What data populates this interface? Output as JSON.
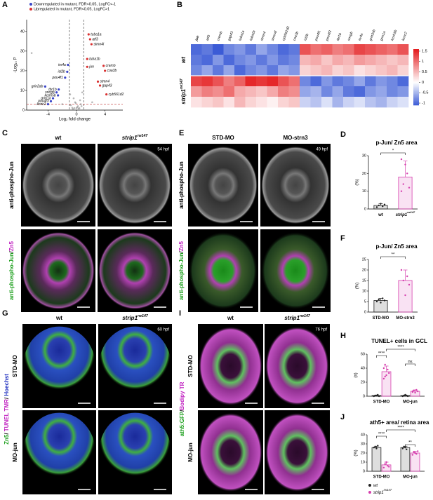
{
  "panels": {
    "A": {
      "letter": "A",
      "type": "volcano",
      "legend": [
        {
          "label": "Downregulated in mutant, FDR<0.05, LogFC<-1",
          "color": "#3a45c8",
          "genes": [
            {
              "name": "irx4a",
              "x": -1.2,
              "y": 23
            },
            {
              "name": "isl2b",
              "x": -1.3,
              "y": 19.5
            },
            {
              "name": "pou4f1",
              "x": -1.6,
              "y": 16.5
            },
            {
              "name": "grin2ab",
              "x": -4.4,
              "y": 12
            },
            {
              "name": "tbr1b",
              "x": -2.5,
              "y": 10.5
            },
            {
              "name": "sncgb",
              "x": -2.8,
              "y": 9
            },
            {
              "name": "kcnh5b",
              "x": -2.6,
              "y": 7.5
            },
            {
              "name": "grm1a",
              "x": -3.3,
              "y": 6
            },
            {
              "name": "pou4f3",
              "x": -3.6,
              "y": 4.5
            },
            {
              "name": "kcnc2",
              "x": -4.0,
              "y": 3
            }
          ]
        },
        {
          "label": "Upregulated in mutant, FDR<0.05, LogFC>1",
          "color": "#d93030",
          "genes": [
            {
              "name": "tuba1a",
              "x": 1.7,
              "y": 38.5
            },
            {
              "name": "atf3",
              "x": 1.9,
              "y": 36
            },
            {
              "name": "stmn4l",
              "x": 2.1,
              "y": 33.5
            },
            {
              "name": "tuba1b",
              "x": 1.5,
              "y": 26
            },
            {
              "name": "jun",
              "x": 1.5,
              "y": 22
            },
            {
              "name": "cremb",
              "x": 3.8,
              "y": 22.5
            },
            {
              "name": "coa3b",
              "x": 4.0,
              "y": 20
            },
            {
              "name": "stmn4",
              "x": 3.0,
              "y": 14.5
            },
            {
              "name": "gap43",
              "x": 3.3,
              "y": 12.5
            },
            {
              "name": "cyb561d2",
              "x": 4.2,
              "y": 8
            }
          ]
        }
      ],
      "other_points": {
        "x": [
          -0.3,
          0.2,
          -0.5,
          0.6,
          0.1,
          -0.8,
          0.4,
          -0.2,
          0.7,
          -0.6,
          0.3,
          -0.1,
          0.5,
          -0.4,
          0.0,
          -6.3,
          -2.0,
          2.2,
          -0.9,
          0.8
        ],
        "y": [
          1,
          2,
          0.5,
          3,
          1.5,
          2.5,
          1,
          4,
          2,
          1.2,
          0.8,
          3.5,
          5,
          6,
          1,
          29,
          3,
          4,
          8,
          9
        ]
      },
      "x_label": "Log₂ fold change",
      "y_label": "-Log₁₀ P",
      "xlim": [
        -7,
        6.5
      ],
      "ylim": [
        0,
        46
      ],
      "xticks": [
        -4,
        0,
        4
      ],
      "yticks": [
        0,
        10,
        20,
        30,
        40
      ],
      "logfc_cutoffs": [
        -1,
        1
      ],
      "p_cutoff": 3
    },
    "B": {
      "letter": "B",
      "type": "heatmap",
      "columns": [
        "jun",
        "atf3",
        "cremb",
        "gap43",
        "tuba1a",
        "tuba1b",
        "stmn4",
        "stmn4l",
        "cyb561d2",
        "coa3b",
        "isl2b",
        "pou4f1",
        "pou4f3",
        "tbr1b",
        "sncgb",
        "irx4a",
        "grin2ab",
        "grm1a",
        "kcnh5b",
        "kcnc2"
      ],
      "row_groups": [
        {
          "label": "wt",
          "values": [
            [
              -1.0,
              -0.9,
              -1.1,
              -0.8,
              -0.7,
              -0.9,
              -0.6,
              -0.8,
              -1.0,
              -0.9,
              1.2,
              1.0,
              1.1,
              0.9,
              1.0,
              1.3,
              1.2,
              1.1,
              1.0,
              1.2
            ],
            [
              -0.9,
              -1.0,
              -0.7,
              -1.0,
              -0.8,
              -0.7,
              -0.9,
              -0.7,
              -0.9,
              -0.8,
              0.5,
              0.6,
              0.4,
              0.6,
              0.5,
              0.7,
              0.6,
              0.5,
              0.4,
              0.5
            ],
            [
              -0.8,
              -0.6,
              -0.9,
              -0.6,
              -1.0,
              -0.8,
              -0.7,
              -0.9,
              -0.6,
              -0.7,
              0.3,
              0.4,
              0.5,
              0.3,
              0.4,
              0.2,
              0.3,
              0.4,
              0.5,
              0.3
            ]
          ]
        },
        {
          "label": "strip1",
          "sup": "rw147",
          "values": [
            [
              1.3,
              1.4,
              1.2,
              0.9,
              1.1,
              1.5,
              1.4,
              1.5,
              1.2,
              1.0,
              -0.8,
              -1.0,
              -0.7,
              -0.9,
              -0.8,
              -0.6,
              -0.9,
              -0.7,
              -0.8,
              -1.0
            ],
            [
              0.7,
              0.9,
              0.8,
              1.0,
              0.6,
              0.5,
              0.4,
              0.6,
              0.9,
              0.8,
              -0.6,
              -0.5,
              -0.8,
              -0.6,
              -0.9,
              -1.0,
              -0.7,
              -0.6,
              -0.8,
              -0.7
            ],
            [
              0.2,
              0.3,
              0.4,
              0.2,
              0.5,
              0.3,
              0.2,
              0.1,
              0.3,
              0.4,
              -0.3,
              -0.4,
              -0.2,
              -0.5,
              -0.3,
              -0.2,
              -0.4,
              -0.5,
              -0.3,
              -0.2
            ]
          ]
        }
      ],
      "clim": [
        -1.1,
        1.6
      ],
      "cticks": [
        1.5,
        1,
        0.5,
        0,
        -0.5,
        -1
      ],
      "colors": {
        "low": "#3b5bd6",
        "mid": "#ffffff",
        "high": "#e31a1c"
      }
    },
    "C": {
      "letter": "C",
      "columns": [
        {
          "label": "wt"
        },
        {
          "label": "strip1",
          "sup": "rw147"
        }
      ],
      "stage": "54 hpf",
      "rows": [
        {
          "parts": [
            {
              "text": "anti-phospho-Jun",
              "color": "#000000"
            }
          ]
        },
        {
          "parts": [
            {
              "text": "anti-phospho-Jun",
              "color": "#1fa01f"
            },
            {
              "text": "/",
              "color": "#000000"
            },
            {
              "text": "Zn5",
              "color": "#c020c0"
            }
          ]
        }
      ]
    },
    "E": {
      "letter": "E",
      "columns": [
        {
          "label": "STD-MO"
        },
        {
          "label": "MO-strn3"
        }
      ],
      "stage": "49 hpf",
      "rows": [
        {
          "parts": [
            {
              "text": "anti-phospho-Jun",
              "color": "#000000"
            }
          ]
        },
        {
          "parts": [
            {
              "text": "anti-phospho-Jun",
              "color": "#1fa01f"
            },
            {
              "text": "/",
              "color": "#000000"
            },
            {
              "text": "Zn5",
              "color": "#c020c0"
            }
          ]
        }
      ]
    },
    "G": {
      "letter": "G",
      "columns": [
        {
          "label": "wt"
        },
        {
          "label": "strip1",
          "sup": "rw147"
        }
      ],
      "stage": "60 hpf",
      "stain": [
        {
          "text": "Zn5",
          "color": "#1fa01f"
        },
        {
          "text": "/ ",
          "color": "#000000"
        },
        {
          "text": "TUNEL TMR",
          "color": "#c020c0"
        },
        {
          "text": "/ ",
          "color": "#000000"
        },
        {
          "text": "Hoechst",
          "color": "#2030c0"
        }
      ],
      "rows": [
        {
          "label": "STD-MO"
        },
        {
          "label": "MO-jun"
        }
      ]
    },
    "I": {
      "letter": "I",
      "columns": [
        {
          "label": "wt"
        },
        {
          "label": "strip1",
          "sup": "rw147"
        }
      ],
      "stage": "76 hpf",
      "stain": [
        {
          "text": "ath5:GFP",
          "color": "#1fa01f"
        },
        {
          "text": "/",
          "color": "#000000"
        },
        {
          "text": "Bodipy TR",
          "color": "#c020c0"
        }
      ],
      "rows": [
        {
          "label": "STD-MO"
        },
        {
          "label": "MO-jun"
        }
      ]
    },
    "D": {
      "letter": "D",
      "type": "bar",
      "title": "p-Jun/ Zn5 area",
      "y_label": "(%)",
      "categories": [
        {
          "label": "wt"
        },
        {
          "label": "strip1",
          "sup": "rw147"
        }
      ],
      "values": [
        2,
        18
      ],
      "errors": [
        1,
        9
      ],
      "colors": [
        "#222222",
        "#d63fae"
      ],
      "points": [
        [
          1,
          2,
          3,
          1.5,
          2.5,
          1
        ],
        [
          10,
          14,
          25,
          20,
          12,
          28
        ]
      ],
      "ylim": [
        0,
        30
      ],
      "yticks": [
        0,
        10,
        20,
        30
      ],
      "significance": [
        "*"
      ]
    },
    "F": {
      "letter": "F",
      "type": "bar",
      "title": "p-Jun/ Zn5 area",
      "y_label": "(%)",
      "categories": [
        {
          "label": "STD-MO"
        },
        {
          "label": "MO-strn3"
        }
      ],
      "values": [
        5.5,
        15
      ],
      "errors": [
        1,
        5
      ],
      "colors": [
        "#222222",
        "#d63fae"
      ],
      "points": [
        [
          5,
          6,
          4.5,
          6.5,
          5.5
        ],
        [
          20,
          15,
          8,
          17,
          13
        ]
      ],
      "ylim": [
        0,
        25
      ],
      "yticks": [
        0,
        5,
        10,
        15,
        20,
        25
      ],
      "significance": [
        "**"
      ]
    },
    "H": {
      "letter": "H",
      "type": "grouped_bar",
      "title": "TUNEL+ cells in GCL",
      "y_label": "(n)",
      "categories": [
        "STD-MO",
        "MO-jun"
      ],
      "series": [
        {
          "color": "#222222",
          "values": [
            1,
            1
          ],
          "errors": [
            0.5,
            0.5
          ],
          "points": [
            [
              0,
              1,
              1,
              2,
              0
            ],
            [
              0,
              1,
              2,
              1,
              0
            ]
          ]
        },
        {
          "color": "#d63fae",
          "values": [
            35,
            7
          ],
          "errors": [
            8,
            2
          ],
          "points": [
            [
              25,
              45,
              30,
              38,
              33,
              40,
              28
            ],
            [
              6,
              8,
              5,
              9,
              7,
              7
            ]
          ]
        }
      ],
      "ylim": [
        0,
        60
      ],
      "yticks": [
        0,
        20,
        40,
        60
      ],
      "significance": [
        "****",
        "ns",
        "****"
      ]
    },
    "J": {
      "letter": "J",
      "type": "grouped_bar",
      "title": "ath5+ area/ retina area",
      "y_label": "(%)",
      "categories": [
        "STD-MO",
        "MO-jun"
      ],
      "series": [
        {
          "name": "wt",
          "color": "#222222",
          "values": [
            26,
            26
          ],
          "errors": [
            1.5,
            1.5
          ],
          "points": [
            [
              26,
              27,
              25,
              28
            ],
            [
              25,
              27,
              26,
              24
            ]
          ]
        },
        {
          "name": "strip1",
          "sup": "rw147",
          "color": "#d63fae",
          "values": [
            7,
            20
          ],
          "errors": [
            3,
            2
          ],
          "points": [
            [
              4,
              8,
              10,
              6,
              5
            ],
            [
              18,
              21,
              20,
              19,
              22
            ]
          ]
        }
      ],
      "ylim": [
        0,
        40
      ],
      "yticks": [
        0,
        10,
        20,
        30,
        40
      ],
      "significance": [
        "****",
        "**",
        "****"
      ]
    }
  }
}
